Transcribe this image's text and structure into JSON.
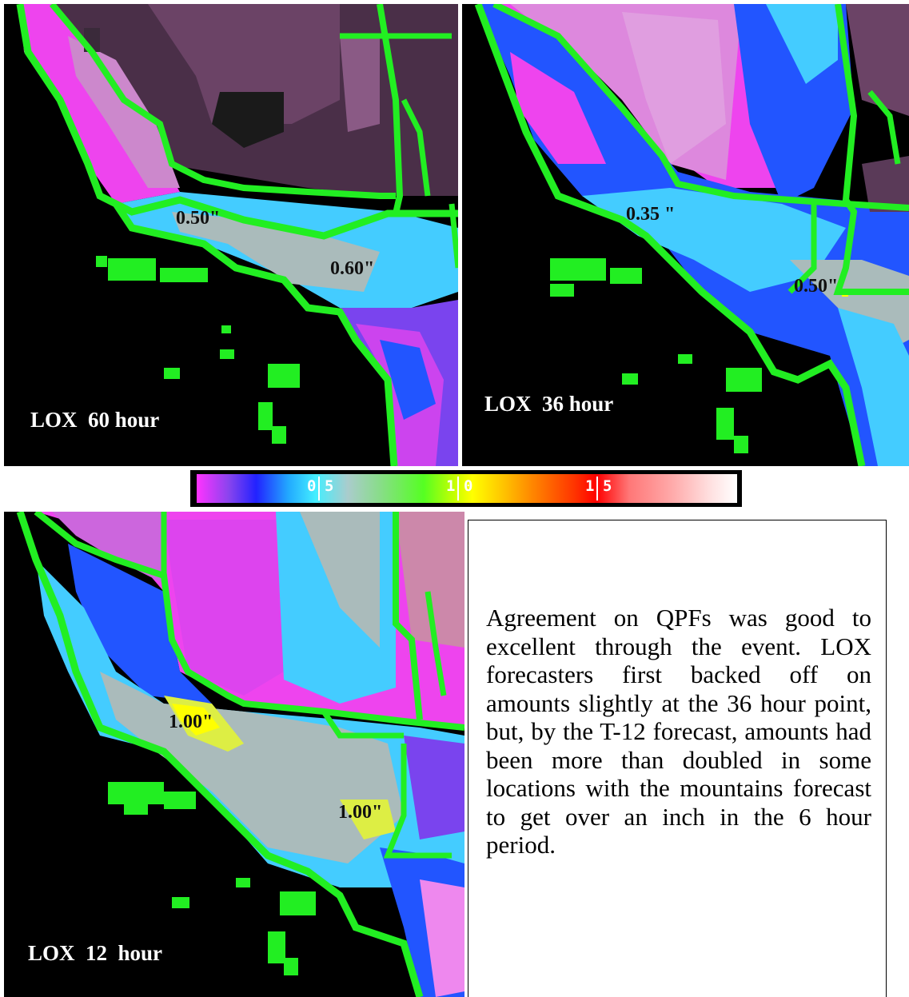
{
  "panels": {
    "p60": {
      "label": "LOX  60 hour",
      "amount_1": "0.50\"",
      "amount_2": "0.60\""
    },
    "p36": {
      "label": "LOX  36 hour",
      "amount_1": "0.35 \"",
      "amount_2": "0.50\""
    },
    "p12": {
      "label": "LOX  12  hour",
      "amount_1": "1.00\"",
      "amount_2": "1.00\""
    }
  },
  "colorbar": {
    "ticks": [
      {
        "left": "0",
        "right": "5"
      },
      {
        "left": "1",
        "right": "0"
      },
      {
        "left": "1",
        "right": "5"
      }
    ]
  },
  "description": "Agreement on QPFs was good to excellent through the event. LOX forecasters first backed off on amounts slightly at the 36 hour point, but, by the T-12 forecast, amounts had been more than doubled in some locations with the mountains forecast to get over an inch in the 6 hour period.",
  "colors": {
    "border": "#22ee22",
    "magenta": "#ee44ee",
    "pink": "#dd88dd",
    "blue": "#2255ff",
    "cyan": "#44ccff",
    "gray": "#aabbbb",
    "yellow": "#ffff00"
  }
}
